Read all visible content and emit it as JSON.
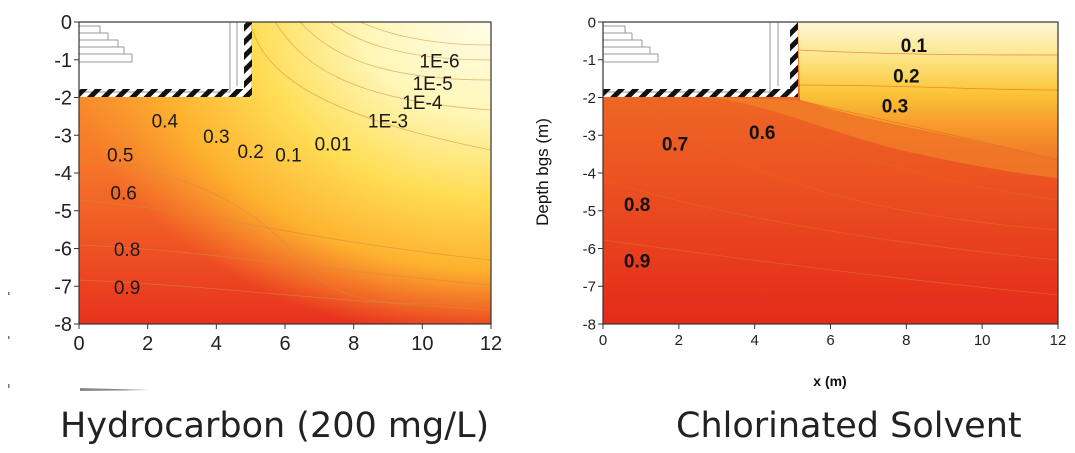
{
  "captions": {
    "left": "Hydrocarbon (200 mg/L)",
    "right": "Chlorinated Solvent"
  },
  "chart_data": [
    {
      "type": "contour",
      "title": "",
      "caption": "Hydrocarbon (200 mg/L)",
      "xlabel": "",
      "ylabel": "",
      "xlim": [
        0,
        12
      ],
      "ylim": [
        -8,
        0
      ],
      "xticks": [
        0,
        2,
        4,
        6,
        8,
        10,
        12
      ],
      "yticks": [
        0,
        -1,
        -2,
        -3,
        -4,
        -5,
        -6,
        -7,
        -8
      ],
      "tick_label_style": "regular",
      "structure": {
        "building_x": [
          0,
          5
        ],
        "building_floor_depth": -2,
        "wall_x": 5
      },
      "contour_labels": [
        {
          "text": "1E-6",
          "x": 10.5,
          "y": -1.2
        },
        {
          "text": "1E-5",
          "x": 10.3,
          "y": -1.8
        },
        {
          "text": "1E-4",
          "x": 10.0,
          "y": -2.3
        },
        {
          "text": "1E-3",
          "x": 9.0,
          "y": -2.8
        },
        {
          "text": "0.01",
          "x": 7.4,
          "y": -3.4
        },
        {
          "text": "0.1",
          "x": 6.1,
          "y": -3.7
        },
        {
          "text": "0.2",
          "x": 5.0,
          "y": -3.6
        },
        {
          "text": "0.3",
          "x": 4.0,
          "y": -3.2
        },
        {
          "text": "0.4",
          "x": 2.5,
          "y": -2.8
        },
        {
          "text": "0.5",
          "x": 1.2,
          "y": -3.7
        },
        {
          "text": "0.6",
          "x": 1.3,
          "y": -4.7
        },
        {
          "text": "0.8",
          "x": 1.4,
          "y": -6.2
        },
        {
          "text": "0.9",
          "x": 1.4,
          "y": -7.2
        }
      ],
      "colors": {
        "low": "#fffbe0",
        "high": "#e8261b"
      }
    },
    {
      "type": "contour",
      "title": "",
      "caption": "Chlorinated Solvent",
      "xlabel": "x (m)",
      "ylabel": "Depth bgs (m)",
      "xlim": [
        0,
        12
      ],
      "ylim": [
        -8,
        0
      ],
      "xticks": [
        0,
        2,
        4,
        6,
        8,
        10,
        12
      ],
      "yticks": [
        0,
        -1,
        -2,
        -3,
        -4,
        -5,
        -6,
        -7,
        -8
      ],
      "tick_label_style": "regular",
      "structure": {
        "building_x": [
          0,
          5.2
        ],
        "building_floor_depth": -2,
        "wall_x": 5.2
      },
      "contour_labels": [
        {
          "text": "0.1",
          "x": 8.2,
          "y": -0.8
        },
        {
          "text": "0.2",
          "x": 8.0,
          "y": -1.6
        },
        {
          "text": "0.3",
          "x": 7.7,
          "y": -2.4
        },
        {
          "text": "0.6",
          "x": 4.2,
          "y": -3.1
        },
        {
          "text": "0.7",
          "x": 1.9,
          "y": -3.4
        },
        {
          "text": "0.8",
          "x": 0.9,
          "y": -5.0
        },
        {
          "text": "0.9",
          "x": 0.9,
          "y": -6.5
        }
      ],
      "colors": {
        "low": "#fffbe0",
        "high": "#e8261b"
      }
    }
  ]
}
